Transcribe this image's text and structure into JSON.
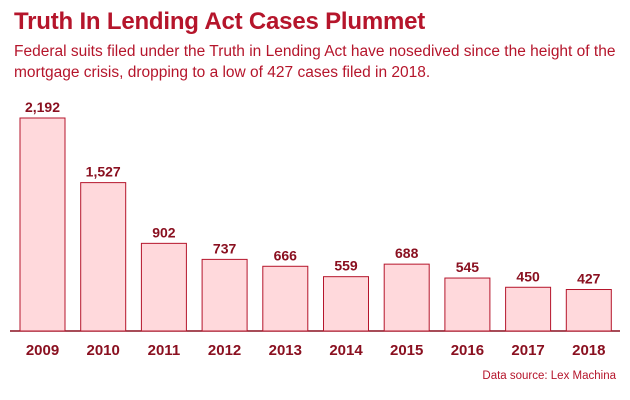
{
  "chart_data": {
    "type": "bar",
    "title": "Truth In Lending Act Cases Plummet",
    "subtitle": "Federal suits filed under the Truth in Lending Act have nosedived since the height of the mortgage crisis, dropping to a low of 427 cases filed in 2018.",
    "categories": [
      "2009",
      "2010",
      "2011",
      "2012",
      "2013",
      "2014",
      "2015",
      "2016",
      "2017",
      "2018"
    ],
    "values": [
      2192,
      1527,
      902,
      737,
      666,
      559,
      688,
      545,
      450,
      427
    ],
    "value_labels": [
      "2,192",
      "1,527",
      "902",
      "737",
      "666",
      "559",
      "688",
      "545",
      "450",
      "427"
    ],
    "xlabel": "",
    "ylabel": "",
    "ylim": [
      0,
      2192
    ],
    "grid": false,
    "legend": "none",
    "source": "Data source: Lex Machina",
    "colors": {
      "bar_fill": "#ffd9dc",
      "bar_stroke": "#b5152b",
      "text": "#b5152b",
      "labels": "#8a1020"
    }
  }
}
